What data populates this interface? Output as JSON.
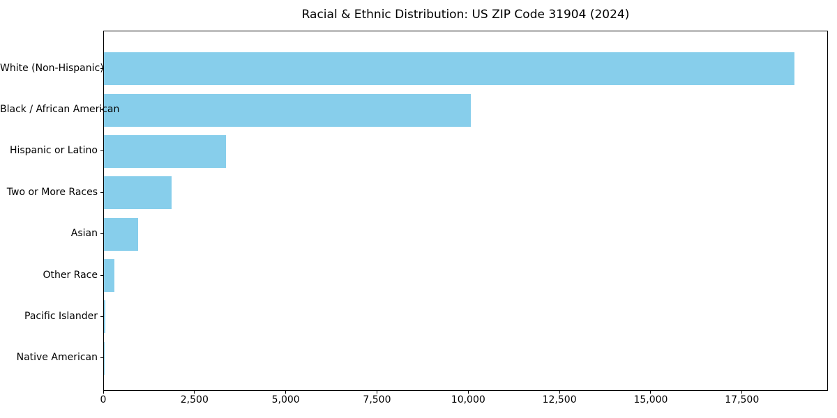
{
  "chart_data": {
    "type": "bar",
    "orientation": "horizontal",
    "title": "Racial & Ethnic Distribution: US ZIP Code 31904 (2024)",
    "categories": [
      "White (Non-Hispanic)",
      "Black / African American",
      "Hispanic or Latino",
      "Two or More Races",
      "Asian",
      "Other Race",
      "Pacific Islander",
      "Native American"
    ],
    "values": [
      18910,
      10055,
      3350,
      1855,
      940,
      285,
      30,
      15
    ],
    "xlabel": "",
    "ylabel": "",
    "xlim": [
      0,
      19855
    ],
    "xticks": [
      0,
      2500,
      5000,
      7500,
      10000,
      12500,
      15000,
      17500
    ],
    "xtick_labels": [
      "0",
      "2,500",
      "5,000",
      "7,500",
      "10,000",
      "12,500",
      "15,000",
      "17,500"
    ],
    "bar_color": "#87CEEB",
    "grid": false,
    "legend": null,
    "background_color": "#ffffff"
  }
}
